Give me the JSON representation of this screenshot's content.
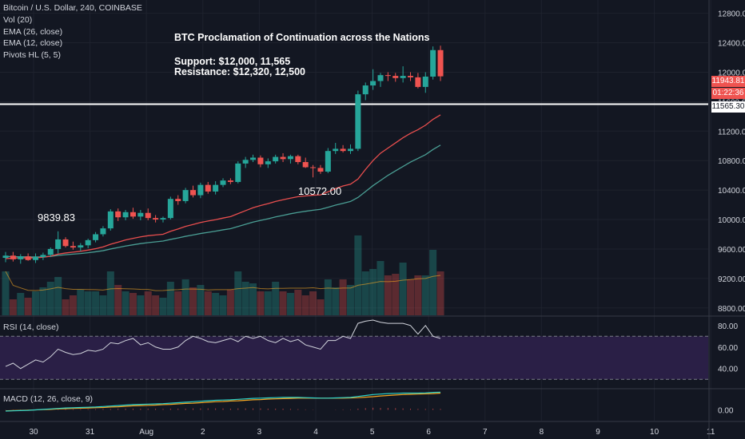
{
  "legend": {
    "symbol": "Bitcoin / U.S. Dollar, 240, COINBASE",
    "vol": "Vol (20)",
    "ema26": "EMA (26, close)",
    "ema12": "EMA (12, close)",
    "pivots": "Pivots HL (5, 5)"
  },
  "annotation": {
    "title": "BTC Proclamation of Continuation across the Nations",
    "support": "Support: $12,000, 11,565",
    "resistance": "Resistance: $12,320, 12,500"
  },
  "pivot_labels": {
    "high": "9839.83",
    "low": "10572.00"
  },
  "price_tags": {
    "last": "11943.81",
    "countdown": "01:22:36",
    "line": "11565.30"
  },
  "panes": {
    "rsi_label": "RSI (14, close)",
    "macd_label": "MACD (12, 26, close, 9)"
  },
  "colors": {
    "background": "#131722",
    "up": "#26a69a",
    "down": "#ef5350",
    "ema26": "#4a9e94",
    "ema12": "#e84e4e",
    "rsi": "#d1d4dc",
    "rsi_band": "#2a1f46",
    "macd": "#2bd0c8",
    "signal": "#f5a623"
  },
  "chart_data": {
    "type": "candlestick",
    "price_axis": {
      "ticks": [
        "12800.00",
        "12400.00",
        "12000.00",
        "11600.00",
        "11200.00",
        "10800.00",
        "10400.00",
        "10000.00",
        "9600.00",
        "9200.00",
        "8800.00"
      ],
      "range": [
        8700,
        12980
      ]
    },
    "time_axis": {
      "ticks": [
        "30",
        "31",
        "Aug",
        "2",
        "3",
        "4",
        "5",
        "6",
        "7",
        "8",
        "9",
        "10",
        "11"
      ]
    },
    "horizontal_line": 11565.3,
    "candles": [
      {
        "o": 9480,
        "h": 9560,
        "l": 9420,
        "c": 9510
      },
      {
        "o": 9510,
        "h": 9560,
        "l": 9430,
        "c": 9460
      },
      {
        "o": 9460,
        "h": 9530,
        "l": 9400,
        "c": 9500
      },
      {
        "o": 9500,
        "h": 9540,
        "l": 9440,
        "c": 9450
      },
      {
        "o": 9450,
        "h": 9540,
        "l": 9410,
        "c": 9490
      },
      {
        "o": 9490,
        "h": 9550,
        "l": 9450,
        "c": 9520
      },
      {
        "o": 9520,
        "h": 9620,
        "l": 9490,
        "c": 9600
      },
      {
        "o": 9600,
        "h": 9839.83,
        "l": 9540,
        "c": 9730
      },
      {
        "o": 9730,
        "h": 9760,
        "l": 9620,
        "c": 9640
      },
      {
        "o": 9640,
        "h": 9700,
        "l": 9590,
        "c": 9620
      },
      {
        "o": 9620,
        "h": 9680,
        "l": 9570,
        "c": 9650
      },
      {
        "o": 9650,
        "h": 9740,
        "l": 9610,
        "c": 9720
      },
      {
        "o": 9720,
        "h": 9830,
        "l": 9690,
        "c": 9800
      },
      {
        "o": 9800,
        "h": 9910,
        "l": 9770,
        "c": 9880
      },
      {
        "o": 9880,
        "h": 10140,
        "l": 9850,
        "c": 10110
      },
      {
        "o": 10110,
        "h": 10150,
        "l": 9980,
        "c": 10030
      },
      {
        "o": 10030,
        "h": 10130,
        "l": 9990,
        "c": 10100
      },
      {
        "o": 10100,
        "h": 10160,
        "l": 10010,
        "c": 10040
      },
      {
        "o": 10040,
        "h": 10130,
        "l": 9990,
        "c": 10090
      },
      {
        "o": 10090,
        "h": 10150,
        "l": 9990,
        "c": 10020
      },
      {
        "o": 10020,
        "h": 10060,
        "l": 9960,
        "c": 10000
      },
      {
        "o": 10000,
        "h": 10040,
        "l": 9960,
        "c": 10020
      },
      {
        "o": 10020,
        "h": 10310,
        "l": 10000,
        "c": 10280
      },
      {
        "o": 10280,
        "h": 10330,
        "l": 10200,
        "c": 10250
      },
      {
        "o": 10250,
        "h": 10430,
        "l": 10220,
        "c": 10400
      },
      {
        "o": 10400,
        "h": 10460,
        "l": 10300,
        "c": 10330
      },
      {
        "o": 10330,
        "h": 10500,
        "l": 10290,
        "c": 10470
      },
      {
        "o": 10470,
        "h": 10510,
        "l": 10350,
        "c": 10380
      },
      {
        "o": 10380,
        "h": 10520,
        "l": 10340,
        "c": 10470
      },
      {
        "o": 10470,
        "h": 10560,
        "l": 10440,
        "c": 10530
      },
      {
        "o": 10530,
        "h": 10560,
        "l": 10480,
        "c": 10510
      },
      {
        "o": 10510,
        "h": 10790,
        "l": 10490,
        "c": 10760
      },
      {
        "o": 10760,
        "h": 10850,
        "l": 10700,
        "c": 10810
      },
      {
        "o": 10810,
        "h": 10880,
        "l": 10780,
        "c": 10840
      },
      {
        "o": 10840,
        "h": 10870,
        "l": 10710,
        "c": 10750
      },
      {
        "o": 10750,
        "h": 10830,
        "l": 10700,
        "c": 10790
      },
      {
        "o": 10790,
        "h": 10880,
        "l": 10760,
        "c": 10850
      },
      {
        "o": 10850,
        "h": 10900,
        "l": 10780,
        "c": 10820
      },
      {
        "o": 10820,
        "h": 10880,
        "l": 10760,
        "c": 10860
      },
      {
        "o": 10860,
        "h": 10880,
        "l": 10750,
        "c": 10780
      },
      {
        "o": 10780,
        "h": 10840,
        "l": 10700,
        "c": 10710
      },
      {
        "o": 10710,
        "h": 10740,
        "l": 10572,
        "c": 10700
      },
      {
        "o": 10700,
        "h": 10740,
        "l": 10620,
        "c": 10650
      },
      {
        "o": 10650,
        "h": 10970,
        "l": 10630,
        "c": 10930
      },
      {
        "o": 10930,
        "h": 11040,
        "l": 10890,
        "c": 10960
      },
      {
        "o": 10960,
        "h": 11010,
        "l": 10910,
        "c": 10930
      },
      {
        "o": 10930,
        "h": 11020,
        "l": 10890,
        "c": 10960
      },
      {
        "o": 10960,
        "h": 11750,
        "l": 10930,
        "c": 11700
      },
      {
        "o": 11700,
        "h": 11860,
        "l": 11620,
        "c": 11820
      },
      {
        "o": 11820,
        "h": 12040,
        "l": 11760,
        "c": 11880
      },
      {
        "o": 11880,
        "h": 11990,
        "l": 11800,
        "c": 11960
      },
      {
        "o": 11960,
        "h": 12000,
        "l": 11880,
        "c": 11950
      },
      {
        "o": 11950,
        "h": 11990,
        "l": 11870,
        "c": 11920
      },
      {
        "o": 11920,
        "h": 12080,
        "l": 11860,
        "c": 11950
      },
      {
        "o": 11950,
        "h": 12000,
        "l": 11880,
        "c": 11930
      },
      {
        "o": 11930,
        "h": 11990,
        "l": 11780,
        "c": 11800
      },
      {
        "o": 11800,
        "h": 12000,
        "l": 11720,
        "c": 11940
      },
      {
        "o": 11940,
        "h": 12350,
        "l": 11900,
        "c": 12300
      },
      {
        "o": 12300,
        "h": 12360,
        "l": 11880,
        "c": 11943.81
      }
    ],
    "volume": [
      0.55,
      0.2,
      0.28,
      0.22,
      0.3,
      0.35,
      0.42,
      0.48,
      0.2,
      0.25,
      0.32,
      0.3,
      0.3,
      0.25,
      0.55,
      0.38,
      0.3,
      0.28,
      0.25,
      0.3,
      0.25,
      0.22,
      0.42,
      0.3,
      0.45,
      0.35,
      0.38,
      0.3,
      0.28,
      0.25,
      0.32,
      0.55,
      0.42,
      0.4,
      0.3,
      0.3,
      0.42,
      0.3,
      0.28,
      0.32,
      0.25,
      0.3,
      0.2,
      0.45,
      0.35,
      0.45,
      0.38,
      1.0,
      0.55,
      0.58,
      0.68,
      0.5,
      0.52,
      0.66,
      0.45,
      0.5,
      0.5,
      0.82,
      0.55
    ],
    "ema12": [
      9470,
      9475,
      9480,
      9478,
      9480,
      9488,
      9502,
      9530,
      9546,
      9557,
      9569,
      9585,
      9604,
      9628,
      9664,
      9693,
      9723,
      9744,
      9765,
      9780,
      9790,
      9800,
      9840,
      9872,
      9907,
      9932,
      9960,
      9980,
      9998,
      10020,
      10040,
      10080,
      10120,
      10160,
      10190,
      10215,
      10245,
      10268,
      10290,
      10310,
      10320,
      10330,
      10335,
      10375,
      10420,
      10455,
      10480,
      10550,
      10680,
      10800,
      10900,
      10970,
      11040,
      11110,
      11170,
      11220,
      11280,
      11360,
      11420
    ],
    "ema26": [
      9500,
      9495,
      9495,
      9492,
      9492,
      9494,
      9500,
      9513,
      9522,
      9530,
      9538,
      9549,
      9562,
      9577,
      9600,
      9620,
      9640,
      9657,
      9673,
      9686,
      9697,
      9708,
      9730,
      9750,
      9772,
      9790,
      9810,
      9826,
      9842,
      9860,
      9876,
      9905,
      9935,
      9965,
      9988,
      10010,
      10035,
      10056,
      10078,
      10096,
      10112,
      10126,
      10138,
      10165,
      10195,
      10220,
      10245,
      10300,
      10380,
      10460,
      10530,
      10600,
      10660,
      10720,
      10780,
      10830,
      10880,
      10950,
      11010
    ],
    "rsi": {
      "axis": [
        "80.00",
        "60.00",
        "40.00"
      ],
      "range": [
        22,
        88
      ],
      "upper": 70,
      "lower": 30,
      "values": [
        42,
        45,
        40,
        44,
        48,
        46,
        51,
        58,
        55,
        53,
        54,
        57,
        56,
        58,
        64,
        63,
        66,
        68,
        62,
        64,
        60,
        58,
        58,
        60,
        66,
        70,
        68,
        65,
        64,
        66,
        68,
        65,
        70,
        68,
        70,
        66,
        64,
        68,
        65,
        67,
        62,
        60,
        58,
        66,
        66,
        70,
        68,
        82,
        84,
        85,
        83,
        82,
        82,
        82,
        80,
        72,
        80,
        70,
        68
      ]
    },
    "macd": {
      "axis": [
        "0.00"
      ],
      "range": [
        -45,
        85
      ],
      "macd": [
        -5,
        -4,
        -3,
        -2,
        0,
        2,
        4,
        6,
        8,
        9,
        10,
        11,
        12,
        14,
        16,
        18,
        20,
        22,
        23,
        24,
        25,
        26,
        28,
        30,
        32,
        34,
        36,
        38,
        40,
        41,
        42,
        44,
        46,
        48,
        49,
        50,
        51,
        52,
        52,
        52,
        51,
        50,
        49,
        49,
        50,
        51,
        52,
        56,
        60,
        64,
        66,
        68,
        69,
        70,
        70,
        70,
        71,
        73,
        74
      ],
      "signal": [
        -4,
        -3,
        -2,
        -1,
        0,
        1,
        2,
        4,
        5,
        6,
        7,
        8,
        9,
        10,
        12,
        13,
        15,
        17,
        18,
        19,
        20,
        22,
        23,
        25,
        27,
        28,
        30,
        32,
        34,
        35,
        37,
        38,
        40,
        42,
        43,
        45,
        46,
        47,
        48,
        49,
        49,
        49,
        49,
        49,
        49,
        49,
        50,
        51,
        53,
        55,
        58,
        60,
        62,
        64,
        65,
        66,
        67,
        68,
        70
      ],
      "hist": [
        1,
        1,
        1,
        1,
        0,
        1,
        2,
        2,
        3,
        3,
        3,
        3,
        3,
        4,
        4,
        5,
        5,
        5,
        5,
        5,
        5,
        4,
        5,
        5,
        5,
        6,
        6,
        6,
        6,
        6,
        5,
        6,
        6,
        6,
        6,
        5,
        5,
        5,
        4,
        3,
        2,
        1,
        0,
        0,
        1,
        2,
        2,
        5,
        7,
        9,
        8,
        8,
        7,
        6,
        5,
        4,
        4,
        5,
        4
      ]
    }
  }
}
